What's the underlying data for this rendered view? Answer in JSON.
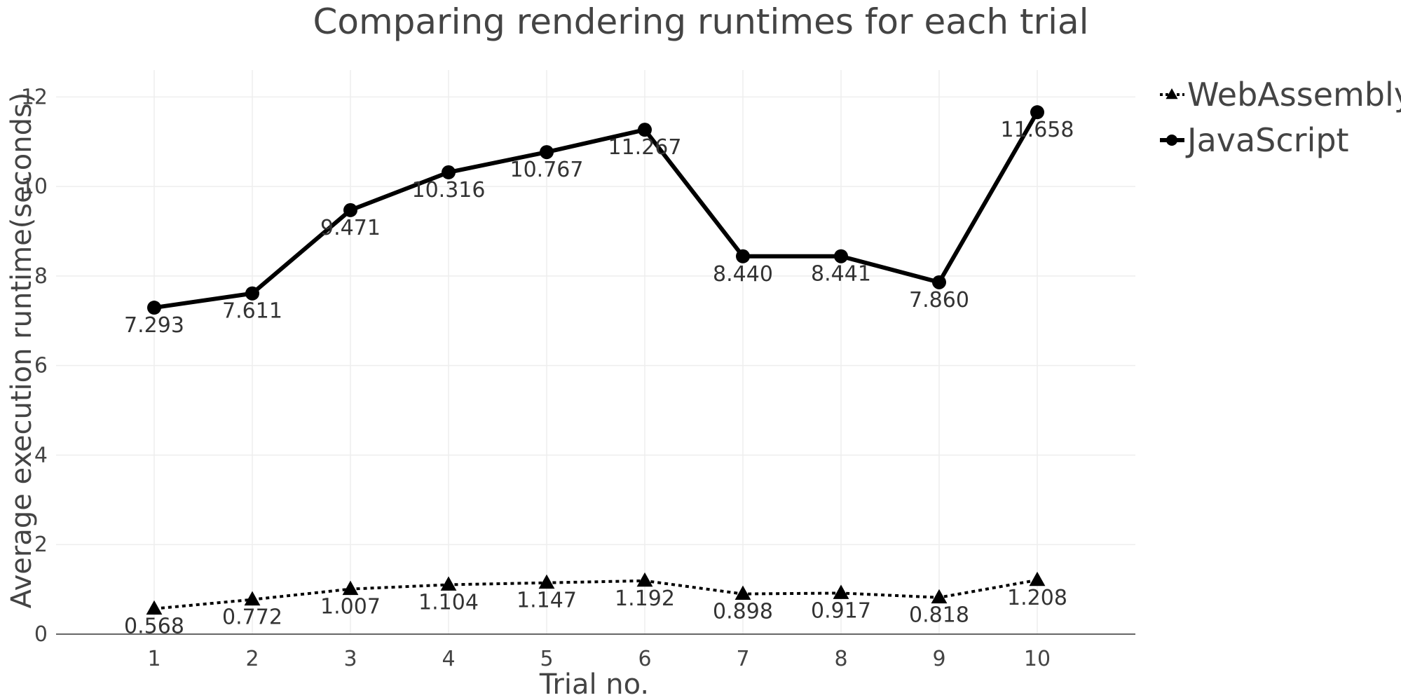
{
  "chart_data": {
    "type": "line",
    "title": "Comparing rendering runtimes for each trial",
    "xlabel": "Trial no.",
    "ylabel": "Average execution runtime(seconds)",
    "x": [
      1,
      2,
      3,
      4,
      5,
      6,
      7,
      8,
      9,
      10
    ],
    "xlim": [
      0,
      11
    ],
    "ylim": [
      0,
      12.6
    ],
    "yticks": [
      0,
      2,
      4,
      6,
      8,
      10,
      12
    ],
    "grid": true,
    "legend_position": "top-right",
    "series": [
      {
        "name": "WebAssembly",
        "marker": "triangle",
        "line_style": "dotted",
        "color": "#000000",
        "values": [
          0.568,
          0.772,
          1.007,
          1.104,
          1.147,
          1.192,
          0.898,
          0.917,
          0.818,
          1.208
        ],
        "labels": [
          "0.568",
          "0.772",
          "1.007",
          "1.104",
          "1.147",
          "1.192",
          "0.898",
          "0.917",
          "0.818",
          "1.208"
        ]
      },
      {
        "name": "JavaScript",
        "marker": "circle",
        "line_style": "solid",
        "color": "#000000",
        "values": [
          7.293,
          7.611,
          9.471,
          10.316,
          10.767,
          11.267,
          8.44,
          8.441,
          7.86,
          11.658
        ],
        "labels": [
          "7.293",
          "7.611",
          "9.471",
          "10.316",
          "10.767",
          "11.267",
          "8.440",
          "8.441",
          "7.860",
          "11.658"
        ]
      }
    ]
  }
}
